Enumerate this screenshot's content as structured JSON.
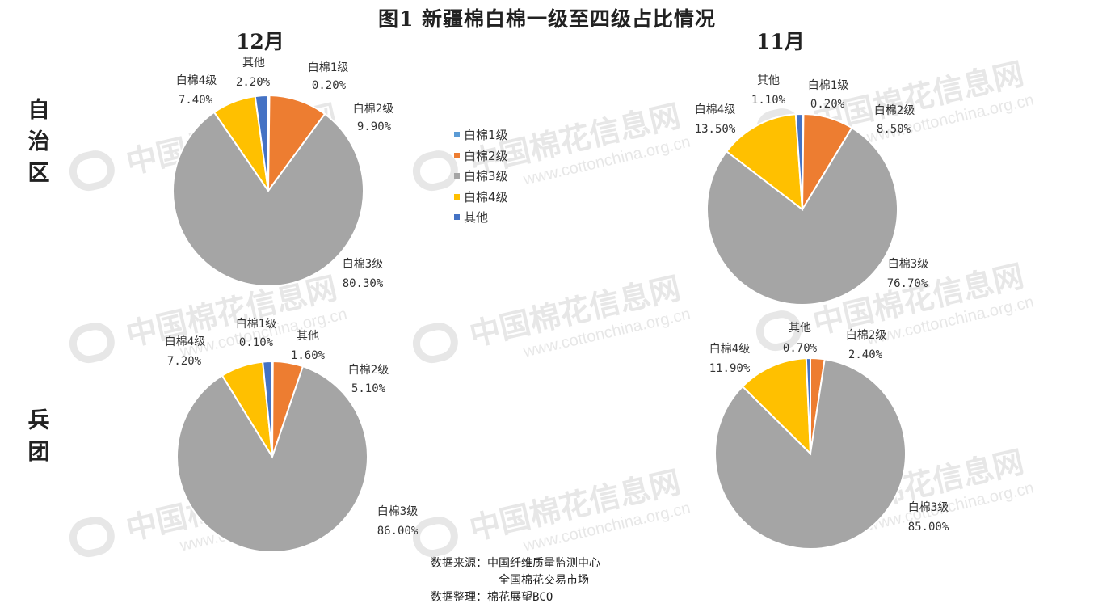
{
  "title": "图1 新疆棉白棉一级至四级占比情况",
  "months": {
    "dec": "12月",
    "nov": "11月"
  },
  "rows": {
    "r1": "自治区",
    "r2": "兵团"
  },
  "colors": {
    "白棉1级": "#5B9BD5",
    "白棉2级": "#ED7D31",
    "白棉3级": "#A5A5A5",
    "白棉4级": "#FFC000",
    "其他": "#4472C4"
  },
  "legend": [
    "白棉1级",
    "白棉2级",
    "白棉3级",
    "白棉4级",
    "其他"
  ],
  "source": {
    "line1": "数据来源：中国纤维质量监测中心",
    "line2": "全国棉花交易市场",
    "line3": "数据整理：棉花展望BCO"
  },
  "watermark": {
    "cn": "中国棉花信息网",
    "en": "www.cottonchina.org.cn"
  },
  "chart_data": [
    {
      "type": "pie",
      "title": "",
      "region": "自治区",
      "month": "12月",
      "categories": [
        "白棉1级",
        "白棉2级",
        "白棉3级",
        "白棉4级",
        "其他"
      ],
      "values": [
        0.2,
        9.9,
        80.3,
        7.4,
        2.2
      ],
      "labels": [
        "0.20%",
        "9.90%",
        "80.30%",
        "7.40%",
        "2.20%"
      ]
    },
    {
      "type": "pie",
      "title": "",
      "region": "自治区",
      "month": "11月",
      "categories": [
        "白棉1级",
        "白棉2级",
        "白棉3级",
        "白棉4级",
        "其他"
      ],
      "values": [
        0.2,
        8.5,
        76.7,
        13.5,
        1.1
      ],
      "labels": [
        "0.20%",
        "8.50%",
        "76.70%",
        "13.50%",
        "1.10%"
      ]
    },
    {
      "type": "pie",
      "title": "",
      "region": "兵团",
      "month": "12月",
      "categories": [
        "白棉1级",
        "白棉2级",
        "白棉3级",
        "白棉4级",
        "其他"
      ],
      "values": [
        0.1,
        5.1,
        86.0,
        7.2,
        1.6
      ],
      "labels": [
        "0.10%",
        "5.10%",
        "86.00%",
        "7.20%",
        "1.60%"
      ]
    },
    {
      "type": "pie",
      "title": "",
      "region": "兵团",
      "month": "11月",
      "categories": [
        "白棉2级",
        "白棉3级",
        "白棉4级",
        "其他"
      ],
      "values": [
        2.4,
        85.0,
        11.9,
        0.7
      ],
      "labels": [
        "2.40%",
        "85.00%",
        "11.90%",
        "0.70%"
      ]
    }
  ]
}
